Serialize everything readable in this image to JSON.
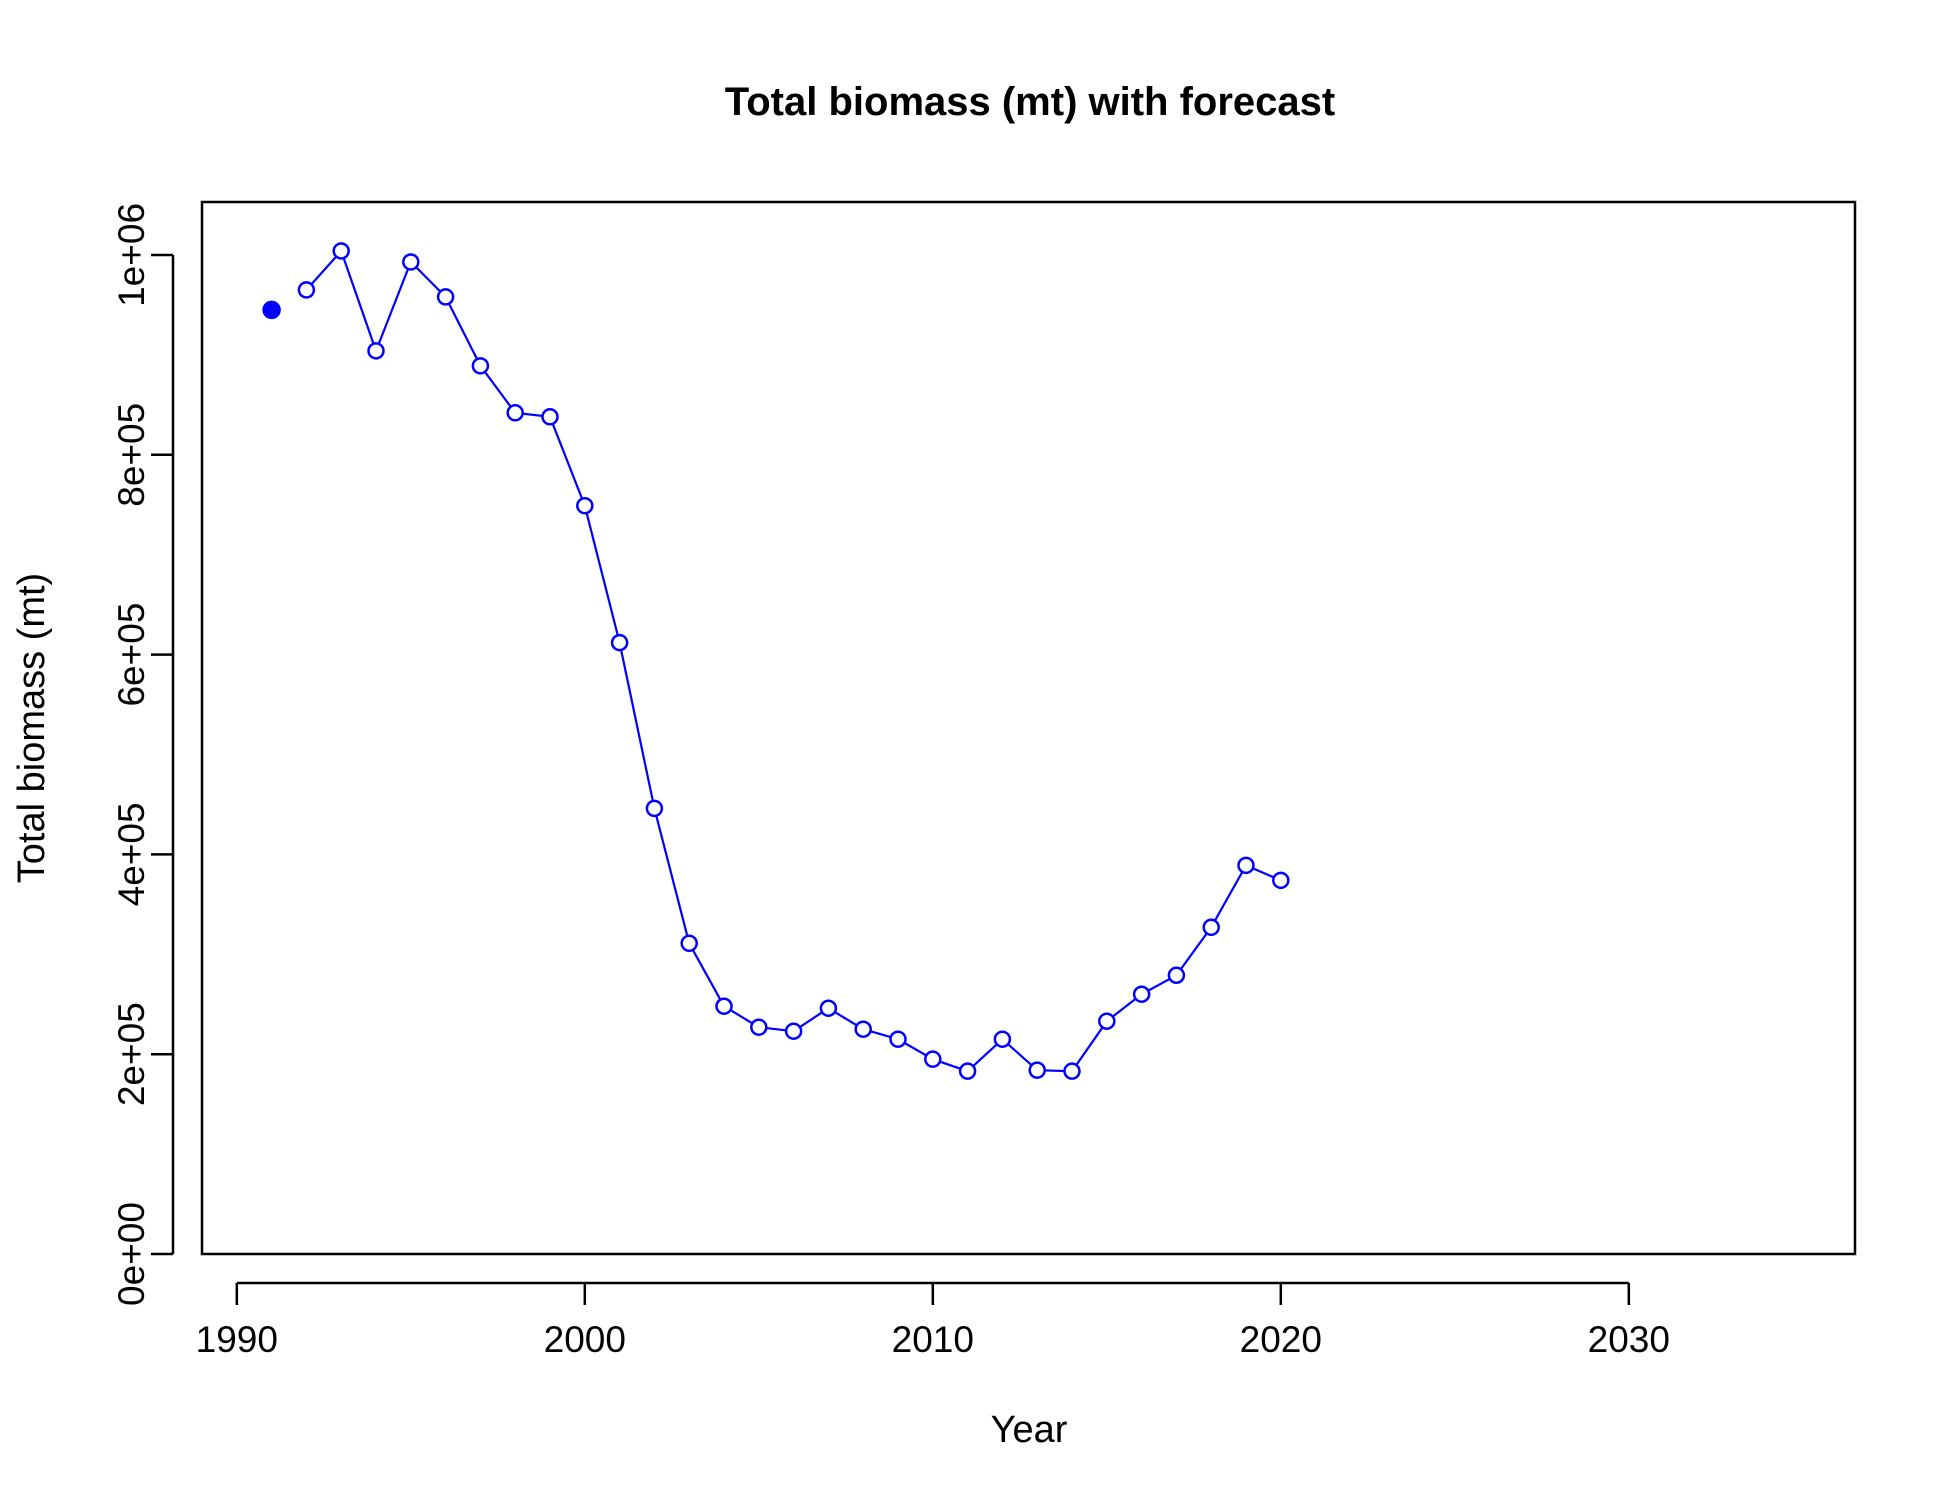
{
  "chart_data": {
    "type": "line",
    "title": "Total biomass (mt) with forecast",
    "xlabel": "Year",
    "ylabel": "Total biomass (mt)",
    "xlim": [
      1989,
      2036.5
    ],
    "ylim": [
      0,
      1053000
    ],
    "x_ticks": [
      1990,
      2000,
      2010,
      2020,
      2030
    ],
    "x_tick_labels": [
      "1990",
      "2000",
      "2010",
      "2020",
      "2030"
    ],
    "y_ticks": [
      0,
      200000,
      400000,
      600000,
      800000,
      1000000
    ],
    "y_tick_labels": [
      "0e+00",
      "2e+05",
      "4e+05",
      "6e+05",
      "8e+05",
      "1e+06"
    ],
    "grid": false,
    "colors": {
      "series": "#0000ff",
      "axes": "#000000"
    },
    "initial_point": {
      "x": 1991,
      "y": 945000,
      "marker": "filled-circle"
    },
    "series": [
      {
        "marker": "open-circle",
        "x": [
          1992,
          1993,
          1994,
          1995,
          1996,
          1997,
          1998,
          1999,
          2000,
          2001,
          2002,
          2003,
          2004,
          2005,
          2006,
          2007,
          2008,
          2009,
          2010,
          2011,
          2012,
          2013,
          2014,
          2015,
          2016,
          2017,
          2018,
          2019,
          2020
        ],
        "y": [
          965000,
          1004000,
          904000,
          993000,
          958000,
          889000,
          842000,
          838000,
          749000,
          612000,
          446000,
          311000,
          248000,
          227000,
          223000,
          246000,
          225000,
          215000,
          195000,
          183000,
          215000,
          184000,
          183000,
          233000,
          260000,
          279000,
          327000,
          389000,
          374000
        ]
      }
    ]
  }
}
